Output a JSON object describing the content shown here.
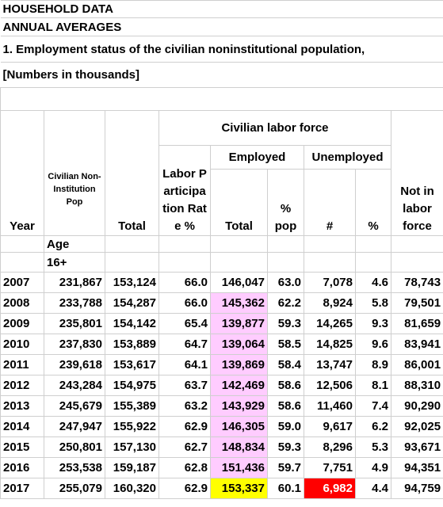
{
  "header": {
    "lines": [
      "HOUSEHOLD DATA",
      "ANNUAL AVERAGES",
      "1.  Employment status of the civilian noninstitutional population,",
      "[Numbers in thousands]"
    ]
  },
  "table": {
    "group_header": "Civilian labor force",
    "employed": "Employed",
    "unemployed": "Unemployed",
    "columns": [
      "Year",
      "Civilian Non-Institution Pop",
      "Total",
      "Labor Participation Rate %",
      "Total",
      "% pop",
      "#",
      "%",
      "Not in labor force"
    ],
    "subnote": [
      "Age",
      "16+"
    ],
    "rows": [
      [
        "2007",
        "231,867",
        "153,124",
        "66.0",
        "146,047",
        "63.0",
        "7,078",
        "4.6",
        "78,743"
      ],
      [
        "2008",
        "233,788",
        "154,287",
        "66.0",
        "145,362",
        "62.2",
        "8,924",
        "5.8",
        "79,501"
      ],
      [
        "2009",
        "235,801",
        "154,142",
        "65.4",
        "139,877",
        "59.3",
        "14,265",
        "9.3",
        "81,659"
      ],
      [
        "2010",
        "237,830",
        "153,889",
        "64.7",
        "139,064",
        "58.5",
        "14,825",
        "9.6",
        "83,941"
      ],
      [
        "2011",
        "239,618",
        "153,617",
        "64.1",
        "139,869",
        "58.4",
        "13,747",
        "8.9",
        "86,001"
      ],
      [
        "2012",
        "243,284",
        "154,975",
        "63.7",
        "142,469",
        "58.6",
        "12,506",
        "8.1",
        "88,310"
      ],
      [
        "2013",
        "245,679",
        "155,389",
        "63.2",
        "143,929",
        "58.6",
        "11,460",
        "7.4",
        "90,290"
      ],
      [
        "2014",
        "247,947",
        "155,922",
        "62.9",
        "146,305",
        "59.0",
        "9,617",
        "6.2",
        "92,025"
      ],
      [
        "2015",
        "250,801",
        "157,130",
        "62.7",
        "148,834",
        "59.3",
        "8,296",
        "5.3",
        "93,671"
      ],
      [
        "2016",
        "253,538",
        "159,187",
        "62.8",
        "151,436",
        "59.7",
        "7,751",
        "4.9",
        "94,351"
      ],
      [
        "2017",
        "255,079",
        "160,320",
        "62.9",
        "153,337",
        "60.1",
        "6,982",
        "4.4",
        "94,759"
      ]
    ]
  }
}
